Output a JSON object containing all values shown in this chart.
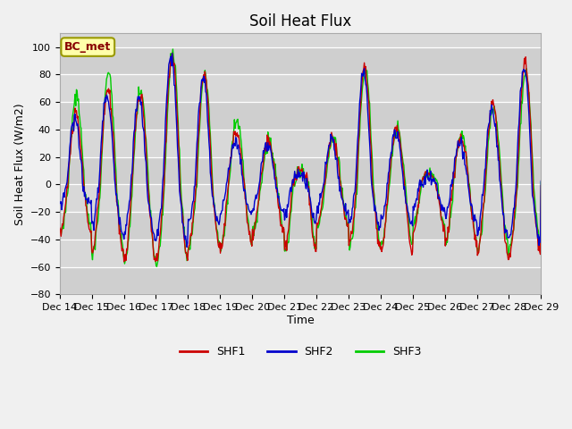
{
  "title": "Soil Heat Flux",
  "ylabel": "Soil Heat Flux (W/m2)",
  "xlabel": "Time",
  "ylim": [
    -80,
    110
  ],
  "yticks": [
    -80,
    -60,
    -40,
    -20,
    0,
    20,
    40,
    60,
    80,
    100
  ],
  "colors": {
    "SHF1": "#cc0000",
    "SHF2": "#0000cc",
    "SHF3": "#00cc00"
  },
  "legend_label": "BC_met",
  "fig_facecolor": "#f0f0f0",
  "ax_facecolor": "#d8d8d8",
  "n_days": 15,
  "start_day": 14,
  "shf1_pos_peaks": [
    50,
    68,
    65,
    95,
    80,
    38,
    30,
    10,
    35,
    85,
    40,
    8,
    33,
    58,
    88
  ],
  "shf1_neg_peaks": [
    35,
    50,
    55,
    55,
    45,
    45,
    35,
    48,
    30,
    45,
    48,
    32,
    42,
    52,
    50
  ],
  "shf2_pos_peaks": [
    48,
    65,
    63,
    93,
    78,
    32,
    28,
    8,
    32,
    82,
    38,
    6,
    30,
    55,
    85
  ],
  "shf2_neg_peaks": [
    15,
    32,
    38,
    42,
    28,
    20,
    18,
    25,
    20,
    30,
    28,
    18,
    25,
    38,
    40
  ],
  "shf3_pos_peaks": [
    65,
    82,
    68,
    96,
    80,
    45,
    30,
    10,
    35,
    84,
    40,
    8,
    35,
    55,
    80
  ],
  "shf3_neg_peaks": [
    35,
    50,
    57,
    57,
    45,
    45,
    35,
    48,
    30,
    45,
    45,
    30,
    42,
    48,
    45
  ],
  "shf1_phase": 0.0,
  "shf2_phase": 0.03,
  "shf3_phase": -0.02,
  "n_pts_per_day": 48,
  "linewidth": 1.0,
  "title_fontsize": 12,
  "axis_label_fontsize": 9,
  "tick_fontsize": 8,
  "legend_fontsize": 9
}
